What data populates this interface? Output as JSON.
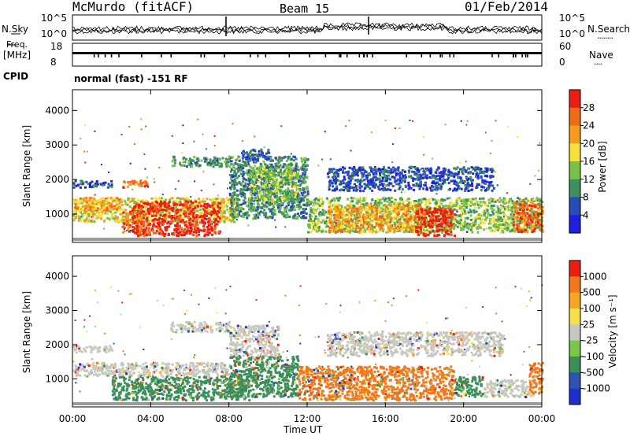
{
  "header": {
    "station": "McMurdo (fitACF)",
    "beam": "Beam 15",
    "date": "01/Feb/2014"
  },
  "noise_panel": {
    "left_label": "N.Sky",
    "right_label": "N.Search",
    "right_legend": "........",
    "left_ticks": [
      "10^5",
      "10^0"
    ],
    "right_ticks": [
      "10^5",
      "10^0"
    ]
  },
  "freq_panel": {
    "left_label_1": "Freq.",
    "left_label_2": "[MHz]",
    "right_label": "Nave",
    "right_legend": "....",
    "left_ticks": [
      "18",
      "8"
    ],
    "right_ticks": [
      "60",
      "0"
    ]
  },
  "cpid": {
    "label": "CPID",
    "value": "normal (fast) -151 RF"
  },
  "colors": {
    "power": [
      "#1f1fe0",
      "#2a4ab8",
      "#3f8f5f",
      "#79c04b",
      "#f4e23a",
      "#f39c1e",
      "#ef6a14",
      "#e81f12"
    ],
    "velocity": [
      "#e81f12",
      "#f07a1a",
      "#f5a623",
      "#f3e04a",
      "#c8c8c0",
      "#7cc74a",
      "#3a8f5a",
      "#2d55b0",
      "#1f2fcf"
    ],
    "ground_scatter": "#c8c8c0"
  },
  "chart_data": [
    {
      "type": "heatmap",
      "name": "power",
      "ylabel": "Slant Range [km]",
      "xlabel": "",
      "xlim": [
        0,
        24
      ],
      "ylim": [
        180,
        4600
      ],
      "y_ticks": [
        "1000",
        "2000",
        "3000",
        "4000"
      ],
      "y_tick_values": [
        1000,
        2000,
        3000,
        4000
      ],
      "x_ticks": [
        "00:00",
        "04:00",
        "08:00",
        "12:00",
        "16:00",
        "20:00",
        "00:00"
      ],
      "x_tick_values": [
        0,
        4,
        8,
        12,
        16,
        20,
        24
      ],
      "colorbar": {
        "label": "Power [dB]",
        "ticks": [
          "4",
          "8",
          "12",
          "16",
          "20",
          "24",
          "28"
        ],
        "tick_values": [
          4,
          8,
          12,
          16,
          20,
          24,
          28
        ],
        "range": [
          0,
          32
        ]
      },
      "regions": [
        {
          "t": [
            0.0,
            8.5
          ],
          "r": [
            800,
            1500
          ],
          "level": 4
        },
        {
          "t": [
            3.0,
            7.5
          ],
          "r": [
            400,
            1400
          ],
          "level": 7
        },
        {
          "t": [
            2.5,
            3.5
          ],
          "r": [
            500,
            1100
          ],
          "level": 6
        },
        {
          "t": [
            0.0,
            2.5
          ],
          "r": [
            1100,
            1500
          ],
          "level": 5
        },
        {
          "t": [
            8.0,
            12.0
          ],
          "r": [
            900,
            2700
          ],
          "level": 2
        },
        {
          "t": [
            9.0,
            11.5
          ],
          "r": [
            1400,
            2400
          ],
          "level": 3
        },
        {
          "t": [
            12.0,
            24.0
          ],
          "r": [
            500,
            1500
          ],
          "level": 3
        },
        {
          "t": [
            13.0,
            18.0
          ],
          "r": [
            500,
            1300
          ],
          "level": 5
        },
        {
          "t": [
            17.5,
            19.5
          ],
          "r": [
            400,
            1200
          ],
          "level": 7
        },
        {
          "t": [
            22.5,
            24.0
          ],
          "r": [
            500,
            1400
          ],
          "level": 6
        },
        {
          "t": [
            13.0,
            21.5
          ],
          "r": [
            1700,
            2400
          ],
          "level": 1
        },
        {
          "t": [
            5.0,
            8.0
          ],
          "r": [
            2400,
            2700
          ],
          "level": 2
        },
        {
          "t": [
            2.5,
            3.8
          ],
          "r": [
            1800,
            2000
          ],
          "level": 6
        },
        {
          "t": [
            0.0,
            2.0
          ],
          "r": [
            1800,
            2000
          ],
          "level": 1
        },
        {
          "t": [
            8.5,
            10.0
          ],
          "r": [
            2600,
            2900
          ],
          "level": 1
        }
      ]
    },
    {
      "type": "heatmap",
      "name": "velocity",
      "ylabel": "Slant Range [km]",
      "xlabel": "Time UT",
      "xlim": [
        0,
        24
      ],
      "ylim": [
        180,
        4600
      ],
      "y_ticks": [
        "1000",
        "2000",
        "3000",
        "4000"
      ],
      "y_tick_values": [
        1000,
        2000,
        3000,
        4000
      ],
      "x_ticks": [
        "00:00",
        "04:00",
        "08:00",
        "12:00",
        "16:00",
        "20:00",
        "00:00"
      ],
      "x_tick_values": [
        0,
        4,
        8,
        12,
        16,
        20,
        24
      ],
      "colorbar": {
        "label": "Velocity [m s⁻¹]",
        "ticks": [
          "1000",
          "500",
          "100",
          "25",
          "-25",
          "-100",
          "-500",
          "-1000"
        ],
        "tick_values": [
          1000,
          500,
          100,
          25,
          -25,
          -100,
          -500,
          -1000
        ]
      },
      "regions": [
        {
          "t": [
            0.0,
            8.0
          ],
          "r": [
            1100,
            1500
          ],
          "class": 4
        },
        {
          "t": [
            2.0,
            9.0
          ],
          "r": [
            400,
            1100
          ],
          "class": 6
        },
        {
          "t": [
            8.0,
            11.5
          ],
          "r": [
            500,
            1700
          ],
          "class": 6
        },
        {
          "t": [
            8.0,
            10.5
          ],
          "r": [
            1700,
            2600
          ],
          "class": 4
        },
        {
          "t": [
            11.5,
            19.5
          ],
          "r": [
            400,
            1400
          ],
          "class": 1
        },
        {
          "t": [
            19.5,
            21.0
          ],
          "r": [
            500,
            1100
          ],
          "class": 6
        },
        {
          "t": [
            21.0,
            23.5
          ],
          "r": [
            500,
            1000
          ],
          "class": 4
        },
        {
          "t": [
            23.3,
            24.0
          ],
          "r": [
            600,
            1500
          ],
          "class": 1
        },
        {
          "t": [
            13.0,
            22.0
          ],
          "r": [
            1700,
            2400
          ],
          "class": 4
        },
        {
          "t": [
            0.0,
            2.0
          ],
          "r": [
            1800,
            2000
          ],
          "class": 4
        },
        {
          "t": [
            5.0,
            8.0
          ],
          "r": [
            2400,
            2700
          ],
          "class": 4
        }
      ]
    }
  ]
}
